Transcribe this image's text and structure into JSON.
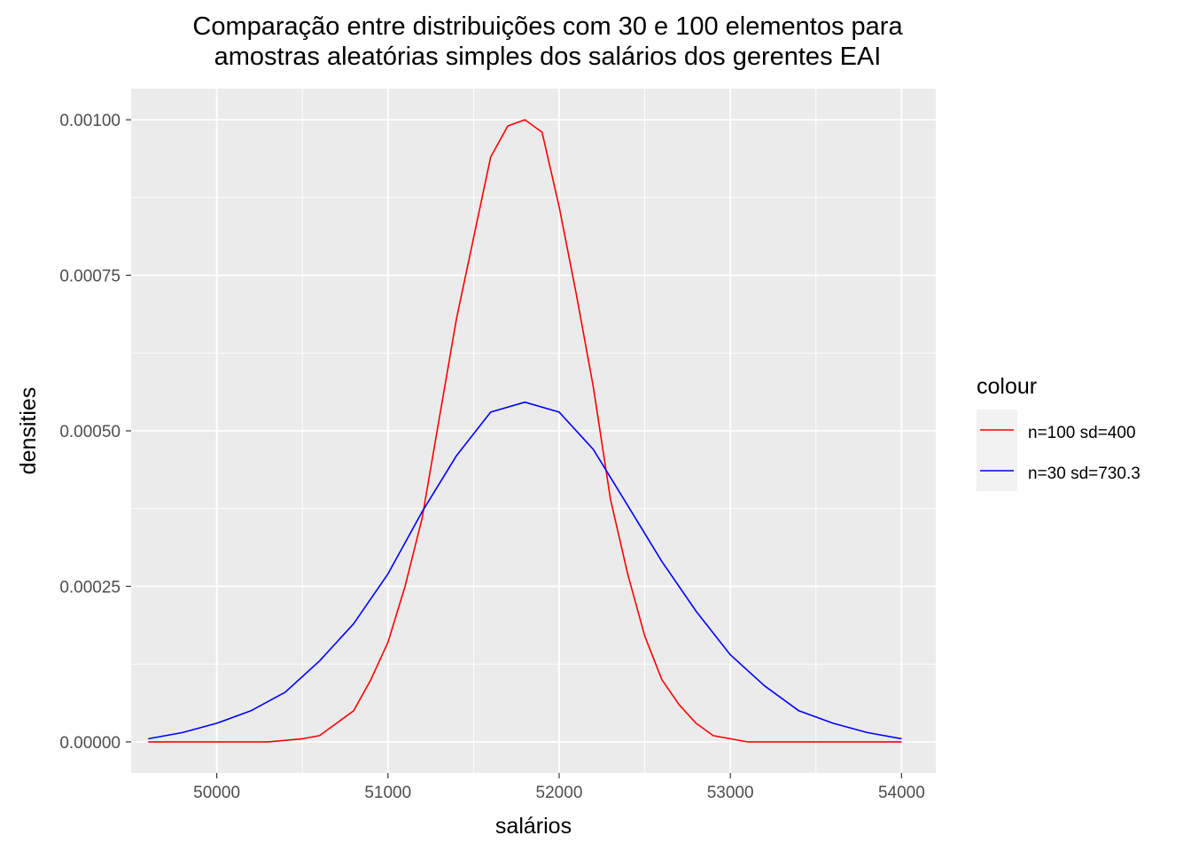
{
  "title": [
    "Comparação entre distribuições com 30 e 100 elementos para",
    "amostras aleatórias simples dos salários dos gerentes EAI"
  ],
  "chart_data": {
    "type": "line",
    "xlabel": "salários",
    "ylabel": "densities",
    "xlim": [
      49500,
      54200
    ],
    "ylim": [
      -5e-05,
      0.00105
    ],
    "x_ticks": [
      50000,
      51000,
      52000,
      53000,
      54000
    ],
    "x_tick_labels": [
      "50000",
      "51000",
      "52000",
      "53000",
      "54000"
    ],
    "y_ticks": [
      0,
      0.00025,
      0.0005,
      0.00075,
      0.001
    ],
    "y_tick_labels": [
      "0.00000",
      "0.00025",
      "0.00050",
      "0.00075",
      "0.00100"
    ],
    "grid": true,
    "legend": {
      "title": "colour",
      "position": "right"
    },
    "series": [
      {
        "name": "n=100 sd=400",
        "color": "#ff0000",
        "x": [
          49600,
          50000,
          50300,
          50500,
          50600,
          50700,
          50800,
          50900,
          51000,
          51100,
          51200,
          51300,
          51400,
          51500,
          51600,
          51700,
          51800,
          51900,
          52000,
          52100,
          52200,
          52300,
          52400,
          52500,
          52600,
          52700,
          52800,
          52900,
          53000,
          53100,
          53300,
          53600,
          54000
        ],
        "y": [
          0.0,
          0.0,
          0.0,
          5e-06,
          1e-05,
          3e-05,
          5e-05,
          0.0001,
          0.00016,
          0.00025,
          0.00036,
          0.00052,
          0.00068,
          0.00081,
          0.00094,
          0.00099,
          0.001,
          0.00098,
          0.00086,
          0.00072,
          0.00057,
          0.00039,
          0.00027,
          0.00017,
          0.0001,
          6e-05,
          3e-05,
          1e-05,
          5e-06,
          0.0,
          0.0,
          0.0,
          0.0
        ]
      },
      {
        "name": "n=30 sd=730.3",
        "color": "#0000ff",
        "x": [
          49600,
          49800,
          50000,
          50200,
          50400,
          50600,
          50800,
          51000,
          51200,
          51400,
          51600,
          51800,
          52000,
          52200,
          52400,
          52600,
          52800,
          53000,
          53200,
          53400,
          53600,
          53800,
          54000
        ],
        "y": [
          5e-06,
          1.5e-05,
          3e-05,
          5e-05,
          8e-05,
          0.00013,
          0.00019,
          0.00027,
          0.00037,
          0.00046,
          0.00053,
          0.000546,
          0.00053,
          0.00047,
          0.00038,
          0.00029,
          0.00021,
          0.00014,
          9e-05,
          5e-05,
          3e-05,
          1.5e-05,
          5e-06
        ]
      }
    ]
  }
}
